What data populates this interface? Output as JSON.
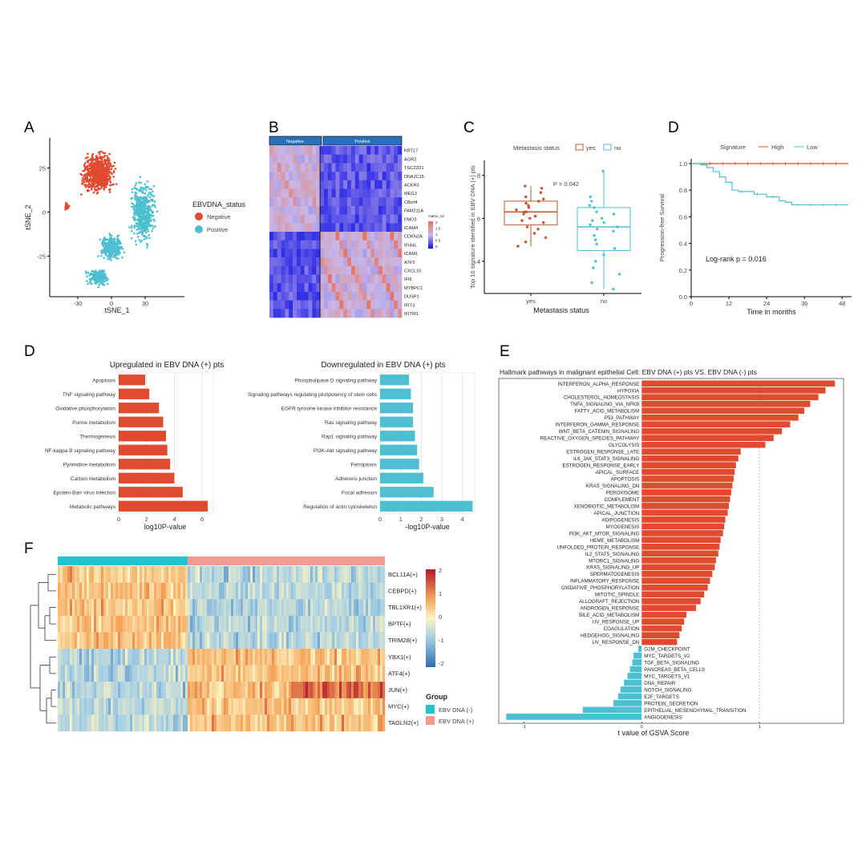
{
  "colors": {
    "red": "#e04a2f",
    "teal": "#4dbfd0",
    "heat_blue": "#1010e6",
    "heat_red": "#e8735a",
    "f_low": "#3a6fb0",
    "f_high": "#c0392b"
  },
  "panel_letters": {
    "A": "A",
    "B": "B",
    "C": "C",
    "D_top": "D",
    "D_mid": "D",
    "E": "E",
    "F": "F"
  },
  "panelA": {
    "xlabel": "tSNE_1",
    "ylabel": "tSNE_2",
    "xticks": [
      -30,
      0,
      30
    ],
    "yticks": [
      25,
      0,
      -25
    ],
    "xlim": [
      -55,
      65
    ],
    "ylim": [
      -48,
      42
    ],
    "legend_title": "EBVDNA_status",
    "legend": [
      "Negative",
      "Positive"
    ],
    "clusters": [
      {
        "group": "Negative",
        "cx": -12,
        "cy": 22,
        "rx": 18,
        "ry": 14,
        "n": 700
      },
      {
        "group": "Negative",
        "cx": -40,
        "cy": 3,
        "rx": 3,
        "ry": 3,
        "n": 25
      },
      {
        "group": "Positive",
        "cx": 28,
        "cy": 0,
        "rx": 14,
        "ry": 22,
        "n": 500
      },
      {
        "group": "Positive",
        "cx": 0,
        "cy": -20,
        "rx": 13,
        "ry": 9,
        "n": 330
      },
      {
        "group": "Positive",
        "cx": -12,
        "cy": -37,
        "rx": 12,
        "ry": 6,
        "n": 200
      }
    ]
  },
  "panelB": {
    "groups": [
      "Negative",
      "Positive"
    ],
    "genes": [
      "KRT17",
      "AGR2",
      "TSC22D1",
      "DNAJC15",
      "ACKR3",
      "MEG3",
      "C8orf4",
      "FAM211A",
      "FMO3",
      "ICAM4",
      "CDKN2A",
      "IFI44L",
      "ICAM1",
      "ATF3",
      "CXCL10",
      "IFI6",
      "MYBPC1",
      "DUSP1",
      "IFIT3",
      "IFITM1"
    ],
    "legend_title": "matrix_13",
    "legend_ticks": [
      "2",
      "1.5",
      "1",
      "0.5",
      "0"
    ]
  },
  "panelC": {
    "chart_data": {
      "type": "box",
      "categories": [
        "yes",
        "no"
      ],
      "ylabel": "Top 10 signature identified in EBV DNA (+) pts",
      "xlabel": "Metastasis status",
      "yticks": [
        4,
        6,
        8
      ],
      "ylim": [
        2.5,
        8.7
      ],
      "boxes": [
        {
          "q1": 5.7,
          "median": 6.3,
          "q3": 6.8,
          "min": 4.7,
          "max": 7.5
        },
        {
          "q1": 4.5,
          "median": 5.6,
          "q3": 6.5,
          "min": 2.7,
          "max": 8.2
        }
      ],
      "points_yes": [
        7.5,
        7.4,
        7.2,
        7.0,
        6.9,
        6.8,
        6.7,
        6.6,
        6.5,
        6.4,
        6.3,
        6.3,
        6.2,
        6.1,
        6.0,
        5.9,
        5.8,
        5.6,
        5.5,
        5.3,
        5.1,
        4.9,
        4.7
      ],
      "points_no": [
        8.2,
        7.0,
        6.8,
        6.6,
        6.5,
        6.3,
        6.2,
        6.0,
        5.9,
        5.8,
        5.7,
        5.6,
        5.5,
        5.4,
        5.2,
        5.0,
        4.8,
        4.6,
        4.3,
        4.0,
        3.7,
        3.4,
        3.0,
        2.7
      ],
      "annotation": "P = 0.042",
      "legend_title": "Metastasis status",
      "legend": [
        "yes",
        "no"
      ]
    }
  },
  "panelD_km": {
    "chart_data": {
      "type": "line",
      "legend_title": "Signature",
      "legend": [
        "High",
        "Low"
      ],
      "xlabel": "Time in months",
      "ylabel": "Progression-free Survival",
      "xticks": [
        0,
        12,
        24,
        36,
        48
      ],
      "yticks": [
        "0.0",
        "0.2",
        "0.4",
        "0.6",
        "0.8",
        "1.0"
      ],
      "annotation": "Log-rank  p = 0.016",
      "high": [
        [
          0,
          1.0
        ],
        [
          50,
          1.0
        ]
      ],
      "low": [
        [
          0,
          1.0
        ],
        [
          3,
          0.99
        ],
        [
          5,
          0.97
        ],
        [
          7,
          0.94
        ],
        [
          9,
          0.9
        ],
        [
          11,
          0.86
        ],
        [
          13,
          0.8
        ],
        [
          15,
          0.79
        ],
        [
          20,
          0.77
        ],
        [
          24,
          0.75
        ],
        [
          28,
          0.72
        ],
        [
          30,
          0.71
        ],
        [
          32,
          0.69
        ],
        [
          50,
          0.69
        ]
      ]
    }
  },
  "panelD_bars": {
    "chart_data": [
      {
        "type": "bar",
        "title": "Upregulated in EBV DNA (+) pts",
        "xlabel": "log10P-value",
        "xticks": [
          0,
          2,
          4,
          6
        ],
        "xlim": [
          0,
          6.8
        ],
        "categories": [
          "Apoptosis",
          "TNF signaling pathway",
          "Oxidative phosphorylation",
          "Purine metabolism",
          "Thermogenesis",
          "NF-kappa B signaling pathway",
          "Pyrimidine metabolism",
          "Carbon metabolism",
          "Epstein-Barr virus infection",
          "Metabolic pathways"
        ],
        "values": [
          1.9,
          2.2,
          2.9,
          3.2,
          3.4,
          3.5,
          3.7,
          4.0,
          4.6,
          6.4
        ]
      },
      {
        "type": "bar",
        "title": "Downregulated in EBV DNA (+) pts",
        "xlabel": "-log10P-value",
        "xticks": [
          0,
          1,
          2,
          3,
          4
        ],
        "xlim": [
          0,
          4.6
        ],
        "categories": [
          "Phospholipase D signaling pathway",
          "Signaling pathways regulating pluripotency of stem cells",
          "EGFR tyrosine kinase inhibitor resistance",
          "Ras signaling pathway",
          "Rap1 signaling pathway",
          "PI3K-Akt signaling pathway",
          "Ferroptosis",
          "Adherens junction",
          "Focal adhesion",
          "Regulation of actin cytoskeleton"
        ],
        "values": [
          1.4,
          1.5,
          1.6,
          1.6,
          1.7,
          1.8,
          1.9,
          2.1,
          2.6,
          4.5
        ]
      }
    ]
  },
  "panelE": {
    "chart_data": {
      "type": "bar",
      "title": "Hallmark pathways in malignant epithelial Cell: EBV DNA (+) pts VS. EBV DNA (-) pts",
      "xlabel": "t value of GSVA Score",
      "xticks": [
        "-1",
        "0",
        "1"
      ],
      "xlim": [
        -1.2,
        1.7
      ],
      "categories": [
        "INTERFERON_ALPHA_RESPONSE",
        "HYPOXIA",
        "CHOLESTEROL_HOMEOSTASIS",
        "TNFA_SIGNALING_VIA_NFKB",
        "FATTY_ACID_METABOLISM",
        "P53_PATHWAY",
        "INTERFERON_GAMMA_RESPONSE",
        "WNT_BETA_CATENIN_SIGNALING",
        "REACTIVE_OXYGEN_SPECIES_PATHWAY",
        "GLYCOLYSIS",
        "ESTROGEN_RESPONSE_LATE",
        "IL6_JAK_STAT3_SIGNALING",
        "ESTROGEN_RESPONSE_EARLY",
        "APICAL_SURFACE",
        "APOPTOSIS",
        "KRAS_SIGNALING_DN",
        "PEROXISOME",
        "COMPLEMENT",
        "XENOBIOTIC_METABOLISM",
        "APICAL_JUNCTION",
        "ADIPOGENESIS",
        "MYOGENESIS",
        "PI3K_AKT_MTOR_SIGNALING",
        "HEME_METABOLISM",
        "UNFOLDED_PROTEIN_RESPONSE",
        "IL2_STAT5_SIGNALING",
        "MTORC1_SIGNALING",
        "KRAS_SIGNALING_UP",
        "SPERMATOGENESIS",
        "INFLAMMATORY_RESPONSE",
        "OXIDATIVE_PHOSPHORYLATION",
        "MITOTIC_SPINDLE",
        "ALLOGRAFT_REJECTION",
        "ANDROGEN_RESPONSE",
        "BILE_ACID_METABOLISM",
        "UV_RESPONSE_UP",
        "COAGULATION",
        "HEDGEHOG_SIGNALING",
        "UV_RESPONSE_DN",
        "G2M_CHECKPOINT",
        "MYC_TARGETS_V2",
        "TGF_BETA_SIGNALING",
        "PANCREAS_BETA_CELLS",
        "MYC_TARGETS_V1",
        "DNA_REPAIR",
        "NOTCH_SIGNALING",
        "E2F_TARGETS",
        "PROTEIN_SECRETION",
        "EPITHELIAL_MESENCHYMAL_TRANSITION",
        "ANGIOGENESIS"
      ],
      "values": [
        1.64,
        1.56,
        1.5,
        1.43,
        1.38,
        1.33,
        1.26,
        1.19,
        1.12,
        1.05,
        0.84,
        0.82,
        0.8,
        0.79,
        0.78,
        0.77,
        0.76,
        0.75,
        0.74,
        0.73,
        0.71,
        0.7,
        0.69,
        0.67,
        0.66,
        0.65,
        0.63,
        0.62,
        0.6,
        0.58,
        0.56,
        0.53,
        0.5,
        0.46,
        0.38,
        0.36,
        0.34,
        0.32,
        0.3,
        -0.03,
        -0.07,
        -0.08,
        -0.1,
        -0.12,
        -0.15,
        -0.18,
        -0.2,
        -0.24,
        -0.5,
        -1.15
      ]
    }
  },
  "panelF": {
    "genes": [
      "BCL11A(+)",
      "CEBPD(+)",
      "TBL1XR1(+)",
      "BPTF(+)",
      "TRIM28(+)",
      "YBX1(+)",
      "ATF4(+)",
      "JUN(+)",
      "MYC(+)",
      "TAGLN2(+)"
    ],
    "legend_ticks": [
      "2",
      "1",
      "0",
      "-1",
      "-2"
    ],
    "group_title": "Group",
    "groups": [
      "EBV DNA (-)",
      "EBV DNA (+)"
    ]
  }
}
